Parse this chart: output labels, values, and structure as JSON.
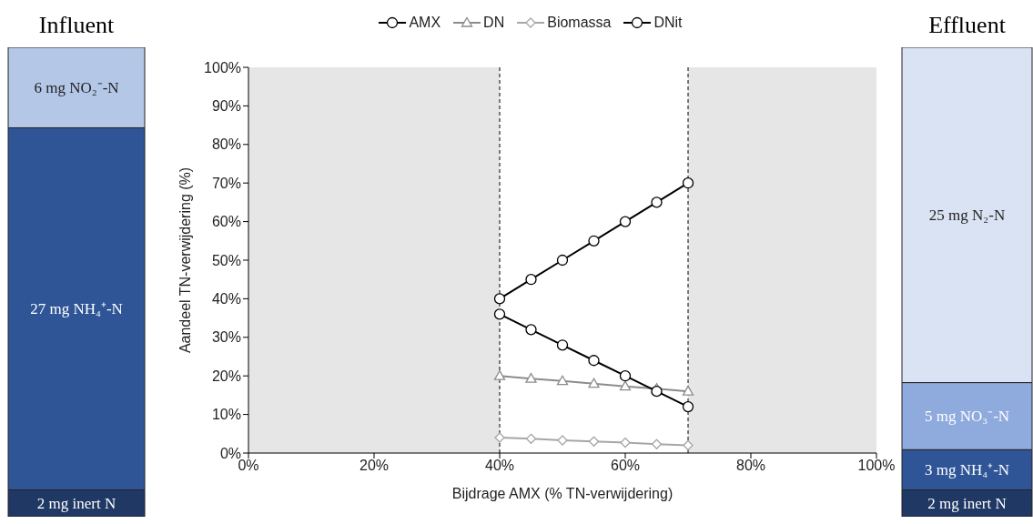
{
  "chart_data": [
    {
      "type": "bar",
      "title": "Influent",
      "stacked": true,
      "categories": [
        null
      ],
      "series": [
        {
          "color": "#203864",
          "values": [
            2
          ],
          "value_labels": [
            "2 mg inert N"
          ]
        },
        {
          "color": "#2f5597",
          "values": [
            27
          ],
          "value_labels": [
            "27 mg NH₄⁺-N"
          ]
        },
        {
          "color": "#b4c7e7",
          "values": [
            6
          ],
          "value_labels": [
            "6 mg NO₂⁻-N"
          ]
        }
      ]
    },
    {
      "type": "line",
      "xlabel": "Bijdrage AMX (% TN-verwijdering)",
      "ylabel": "Aandeel TN-verwijdering (%)",
      "x": [
        40,
        45,
        50,
        55,
        60,
        65,
        70
      ],
      "xlim": [
        0,
        100
      ],
      "xticks": [
        {
          "value": 0,
          "label": "0%"
        },
        {
          "value": 20,
          "label": "20%"
        },
        {
          "value": 40,
          "label": "40%"
        },
        {
          "value": 60,
          "label": "60%"
        },
        {
          "value": 80,
          "label": "80%"
        },
        {
          "value": 100,
          "label": "100%"
        }
      ],
      "ylim": [
        0,
        100
      ],
      "yticks": [
        {
          "value": 0,
          "label": "0%"
        },
        {
          "value": 10,
          "label": "10%"
        },
        {
          "value": 20,
          "label": "20%"
        },
        {
          "value": 30,
          "label": "30%"
        },
        {
          "value": 40,
          "label": "40%"
        },
        {
          "value": 50,
          "label": "50%"
        },
        {
          "value": 60,
          "label": "60%"
        },
        {
          "value": 70,
          "label": "70%"
        },
        {
          "value": 80,
          "label": "80%"
        },
        {
          "value": 90,
          "label": "90%"
        },
        {
          "value": 100,
          "label": "100%"
        }
      ],
      "grid": false,
      "legend": "top",
      "line_style": "solid",
      "series": [
        {
          "name": "AMX",
          "color": "#000000",
          "marker": "circle",
          "values": [
            40,
            45,
            50,
            55,
            60,
            65,
            70
          ]
        },
        {
          "name": "DN",
          "color": "#8c8c8c",
          "marker": "triangle",
          "values": [
            20,
            19.3,
            18.7,
            18,
            17.3,
            16.7,
            16
          ]
        },
        {
          "name": "Biomassa",
          "color": "#a6a6a6",
          "marker": "diamond",
          "values": [
            4,
            3.7,
            3.3,
            3,
            2.7,
            2.3,
            2
          ]
        },
        {
          "name": "DNit",
          "color": "#000000",
          "marker": "circle",
          "values": [
            36,
            32,
            28,
            24,
            20,
            16,
            12
          ]
        }
      ],
      "bands": [
        {
          "axis": "x",
          "from": 0,
          "to": 40,
          "color": "#e6e6e6"
        },
        {
          "axis": "x",
          "from": 70,
          "to": 100,
          "color": "#e6e6e6"
        }
      ],
      "ref_lines": [
        {
          "axis": "x",
          "value": 40,
          "line_style": "dashed",
          "color": "#000000"
        },
        {
          "axis": "x",
          "value": 70,
          "line_style": "dashed",
          "color": "#000000"
        }
      ]
    },
    {
      "type": "bar",
      "title": "Effluent",
      "stacked": true,
      "categories": [
        null
      ],
      "series": [
        {
          "color": "#203864",
          "values": [
            2
          ],
          "value_labels": [
            "2 mg inert N"
          ]
        },
        {
          "color": "#2f5597",
          "values": [
            3
          ],
          "value_labels": [
            "3 mg NH₄⁺-N"
          ]
        },
        {
          "color": "#8faadc",
          "values": [
            5
          ],
          "value_labels": [
            "5 mg NO₃⁻-N"
          ]
        },
        {
          "color": "#dae3f3",
          "values": [
            25
          ],
          "value_labels": [
            "25 mg N₂-N"
          ]
        }
      ]
    }
  ]
}
